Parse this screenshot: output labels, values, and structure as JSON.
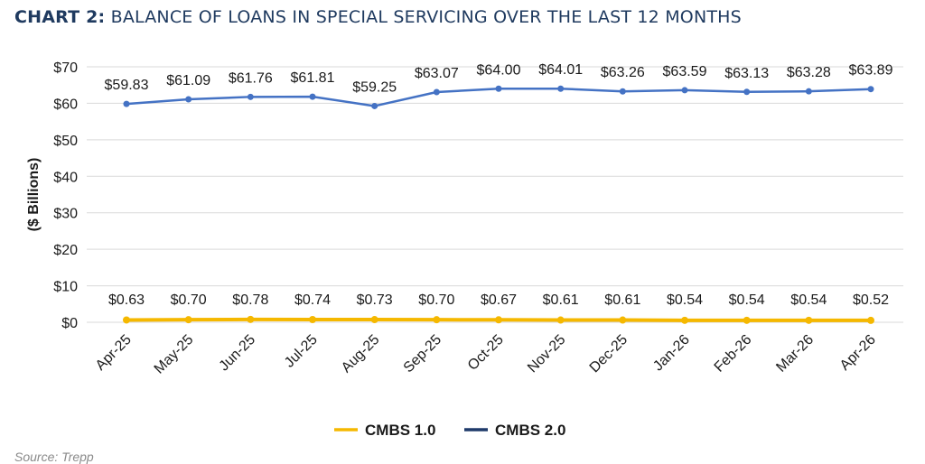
{
  "header": {
    "title_prefix": "CHART 2:",
    "title_rest": "BALANCE OF LOANS IN SPECIAL SERVICING OVER THE LAST 12 MONTHS"
  },
  "footer": {
    "source": "Source: Trepp"
  },
  "colors": {
    "cmbs1": "#f5b800",
    "cmbs2": "#4472c4",
    "cmbs2_legend": "#1f3a6a",
    "grid": "#d9d9d9",
    "text": "#1a1a1a"
  },
  "chart_data": {
    "type": "line",
    "title": "",
    "xlabel": "",
    "ylabel": "($ Billions)",
    "ylim": [
      0,
      70
    ],
    "yticks": [
      0,
      10,
      20,
      30,
      40,
      50,
      60,
      70
    ],
    "ytick_labels": [
      "$0",
      "$10",
      "$20",
      "$30",
      "$40",
      "$50",
      "$60",
      "$70"
    ],
    "categories": [
      "Apr-25",
      "May-25",
      "Jun-25",
      "Jul-25",
      "Aug-25",
      "Sep-25",
      "Oct-25",
      "Nov-25",
      "Dec-25",
      "Jan-26",
      "Feb-26",
      "Mar-26",
      "Apr-26"
    ],
    "series": [
      {
        "name": "CMBS 1.0",
        "values": [
          0.63,
          0.7,
          0.78,
          0.74,
          0.73,
          0.7,
          0.67,
          0.61,
          0.61,
          0.54,
          0.54,
          0.54,
          0.52
        ],
        "labels": [
          "$0.63",
          "$0.70",
          "$0.78",
          "$0.74",
          "$0.73",
          "$0.70",
          "$0.67",
          "$0.61",
          "$0.61",
          "$0.54",
          "$0.54",
          "$0.54",
          "$0.52"
        ]
      },
      {
        "name": "CMBS 2.0",
        "values": [
          59.83,
          61.09,
          61.76,
          61.81,
          59.25,
          63.07,
          64.0,
          64.01,
          63.26,
          63.59,
          63.13,
          63.28,
          63.89
        ],
        "labels": [
          "$59.83",
          "$61.09",
          "$61.76",
          "$61.81",
          "$59.25",
          "$63.07",
          "$64.00",
          "$64.01",
          "$63.26",
          "$63.59",
          "$63.13",
          "$63.28",
          "$63.89"
        ]
      }
    ],
    "grid": true,
    "legend": "bottom"
  }
}
